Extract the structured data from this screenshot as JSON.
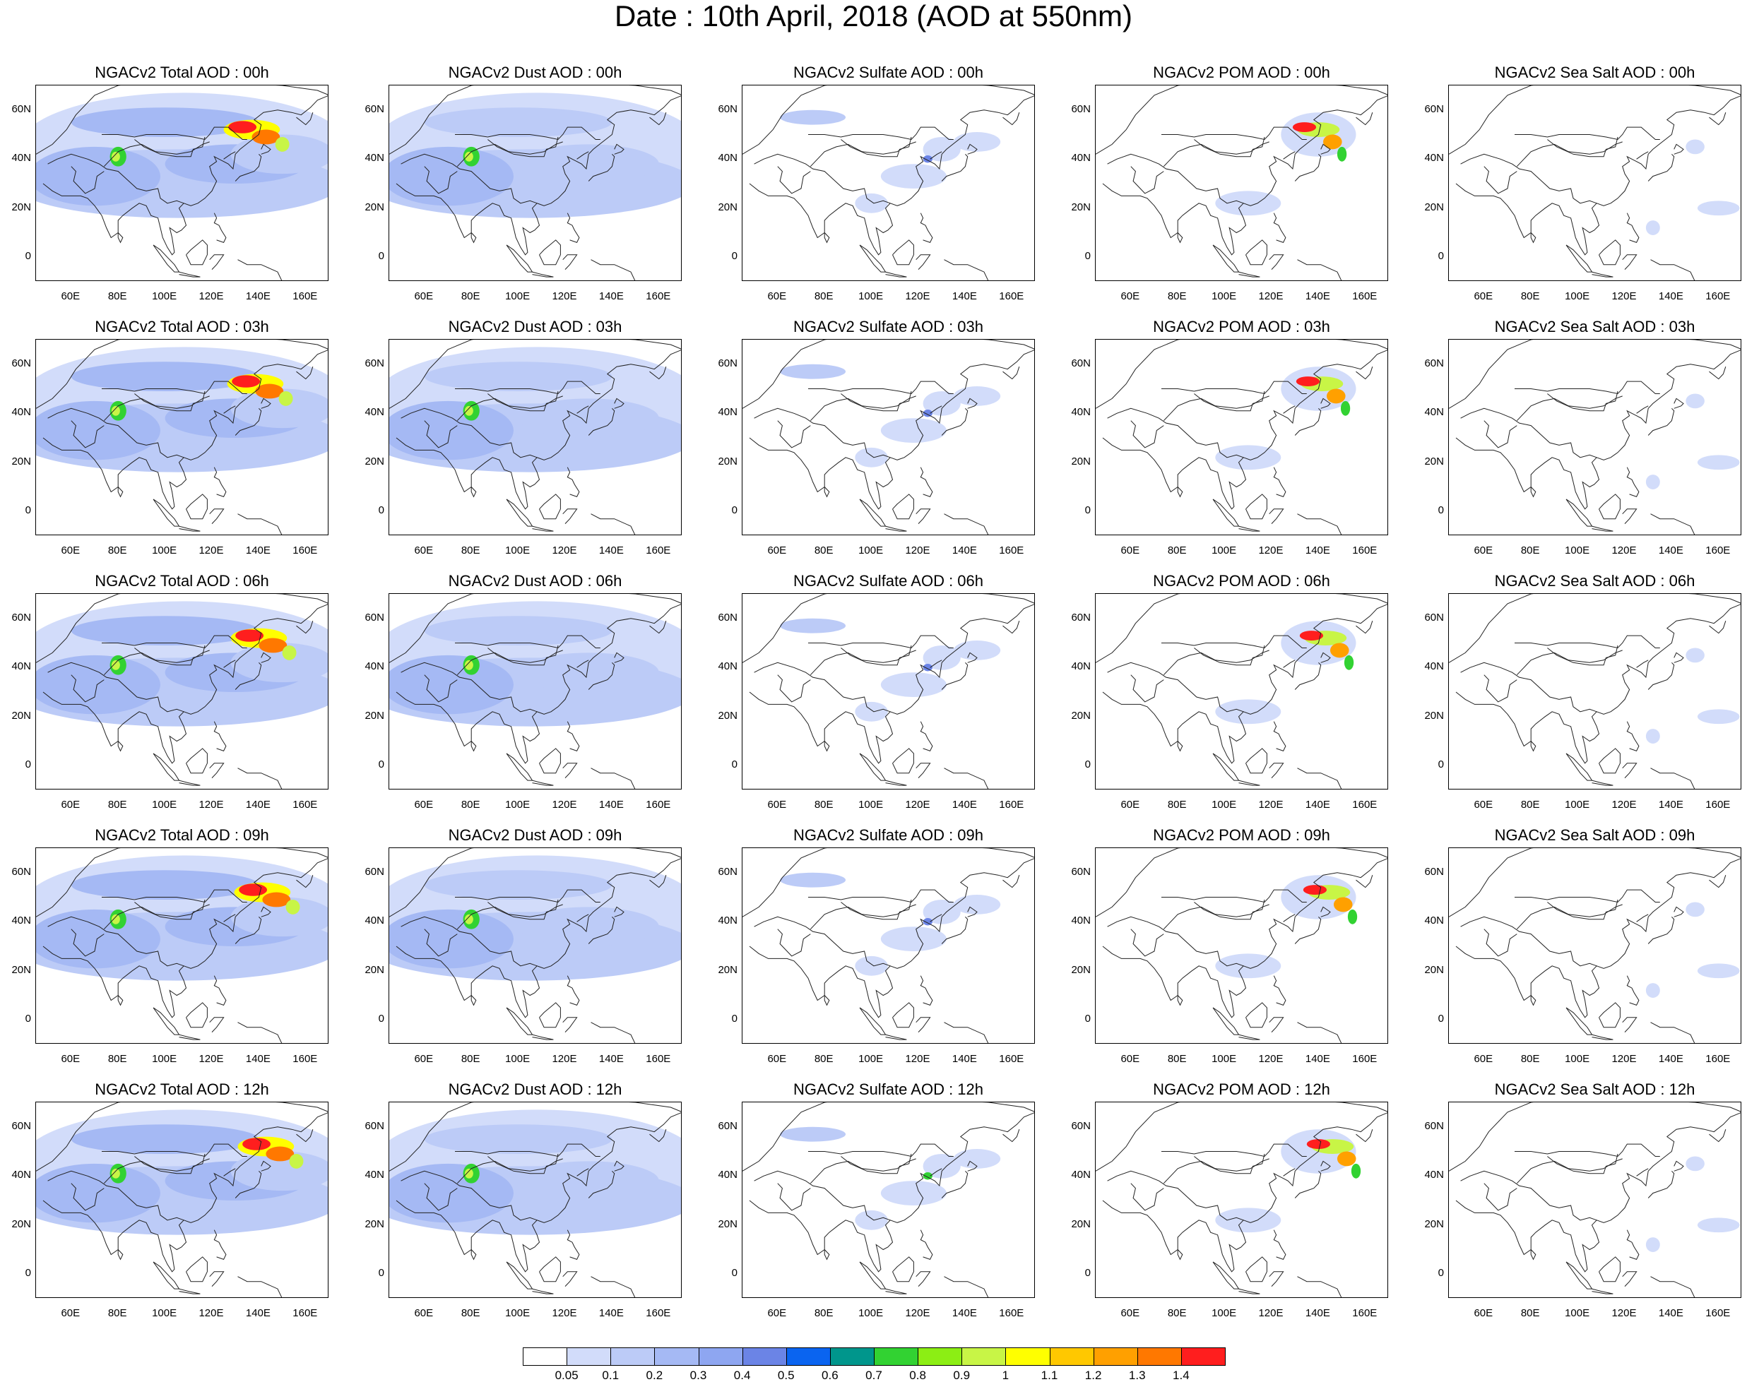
{
  "page": {
    "title": "Date : 10th April, 2018 (AOD at 550nm)"
  },
  "axes": {
    "lat_labels": [
      "60N",
      "40N",
      "20N",
      "0"
    ],
    "lat_values": [
      60,
      40,
      20,
      0
    ],
    "lon_labels": [
      "60E",
      "80E",
      "100E",
      "120E",
      "140E",
      "160E"
    ],
    "lon_values": [
      60,
      80,
      100,
      120,
      140,
      160
    ],
    "lon_range": [
      45,
      170
    ],
    "lat_range": [
      -10,
      70
    ]
  },
  "panels": [
    [
      {
        "title": "NGACv2 Total AOD : 00h",
        "field": "total",
        "hour": "00h"
      },
      {
        "title": "NGACv2 Dust AOD : 00h",
        "field": "dust",
        "hour": "00h"
      },
      {
        "title": "NGACv2 Sulfate AOD : 00h",
        "field": "sulfate",
        "hour": "00h"
      },
      {
        "title": "NGACv2 POM AOD : 00h",
        "field": "pom",
        "hour": "00h"
      },
      {
        "title": "NGACv2 Sea Salt AOD : 00h",
        "field": "seasalt",
        "hour": "00h"
      }
    ],
    [
      {
        "title": "NGACv2 Total AOD : 03h",
        "field": "total",
        "hour": "03h"
      },
      {
        "title": "NGACv2 Dust AOD : 03h",
        "field": "dust",
        "hour": "03h"
      },
      {
        "title": "NGACv2 Sulfate AOD : 03h",
        "field": "sulfate",
        "hour": "03h"
      },
      {
        "title": "NGACv2 POM AOD : 03h",
        "field": "pom",
        "hour": "03h"
      },
      {
        "title": "NGACv2 Sea Salt AOD : 03h",
        "field": "seasalt",
        "hour": "03h"
      }
    ],
    [
      {
        "title": "NGACv2 Total AOD : 06h",
        "field": "total",
        "hour": "06h"
      },
      {
        "title": "NGACv2 Dust AOD : 06h",
        "field": "dust",
        "hour": "06h"
      },
      {
        "title": "NGACv2 Sulfate AOD : 06h",
        "field": "sulfate",
        "hour": "06h"
      },
      {
        "title": "NGACv2 POM AOD : 06h",
        "field": "pom",
        "hour": "06h"
      },
      {
        "title": "NGACv2 Sea Salt AOD : 06h",
        "field": "seasalt",
        "hour": "06h"
      }
    ],
    [
      {
        "title": "NGACv2 Total AOD : 09h",
        "field": "total",
        "hour": "09h"
      },
      {
        "title": "NGACv2 Dust AOD : 09h",
        "field": "dust",
        "hour": "09h"
      },
      {
        "title": "NGACv2 Sulfate AOD : 09h",
        "field": "sulfate",
        "hour": "09h"
      },
      {
        "title": "NGACv2 POM AOD : 09h",
        "field": "pom",
        "hour": "09h"
      },
      {
        "title": "NGACv2 Sea Salt  AOD : 09h",
        "field": "seasalt",
        "hour": "09h"
      }
    ],
    [
      {
        "title": "NGACv2 Total AOD  : 12h",
        "field": "total",
        "hour": "12h"
      },
      {
        "title": "NGACv2 Dust AOD : 12h",
        "field": "dust",
        "hour": "12h"
      },
      {
        "title": "NGACv2 Sulfate AOD : 12h",
        "field": "sulfate",
        "hour": "12h"
      },
      {
        "title": "NGACv2 POM  AOD : 12h",
        "field": "pom",
        "hour": "12h"
      },
      {
        "title": "NGACv2 Sea Salt  AOD : 12h",
        "field": "seasalt",
        "hour": "12h"
      }
    ]
  ],
  "colorbar": {
    "labels": [
      "0.05",
      "0.1",
      "0.2",
      "0.3",
      "0.4",
      "0.5",
      "0.6",
      "0.7",
      "0.8",
      "0.9",
      "1",
      "1.1",
      "1.2",
      "1.3",
      "1.4"
    ],
    "colors": [
      "#ffffff",
      "#d2dcfa",
      "#bccbf7",
      "#a5b9f4",
      "#8ea6f1",
      "#6b84e6",
      "#0a64f0",
      "#00968c",
      "#32d232",
      "#8cee14",
      "#c8f546",
      "#ffff00",
      "#ffc800",
      "#ffa000",
      "#ff7800",
      "#ff1e1e"
    ]
  }
}
